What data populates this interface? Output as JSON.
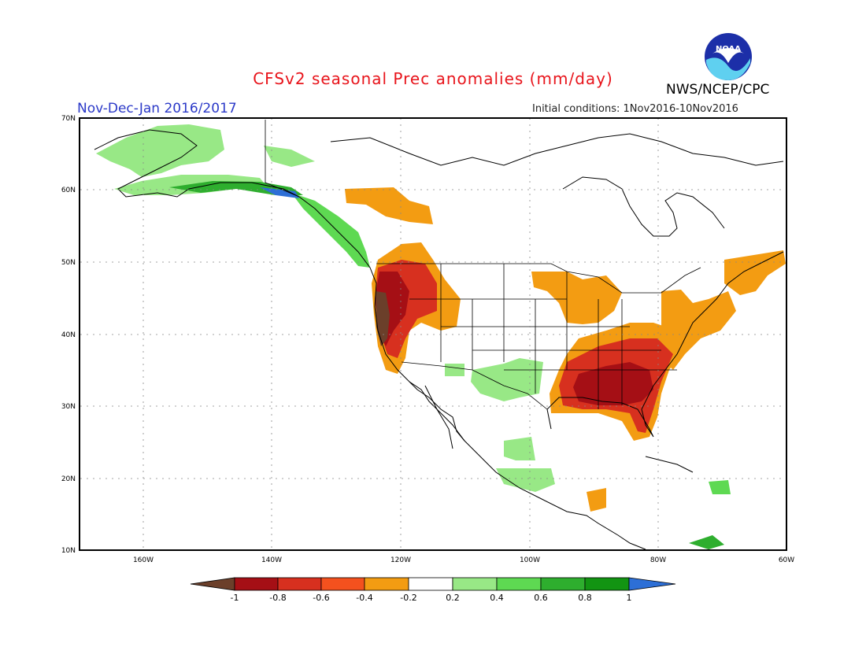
{
  "header": {
    "title": "CFSv2 seasonal Prec anomalies (mm/day)",
    "subtitle": "Nov-Dec-Jan 2016/2017",
    "initial_conditions": "Initial conditions: 1Nov2016-10Nov2016",
    "org": "NWS/NCEP/CPC",
    "logo_text": "NOAA"
  },
  "map": {
    "lat_labels": [
      "70N",
      "60N",
      "50N",
      "40N",
      "30N",
      "20N",
      "10N"
    ],
    "lon_labels": [
      "160W",
      "140W",
      "120W",
      "100W",
      "80W",
      "60W"
    ],
    "lat_range": [
      10,
      70
    ],
    "lon_range": [
      -170,
      -60
    ]
  },
  "colorbar": {
    "labels": [
      "-1",
      "-0.8",
      "-0.6",
      "-0.4",
      "-0.2",
      "0.2",
      "0.4",
      "0.6",
      "0.8",
      "1"
    ],
    "colors": [
      "#6b3f2a",
      "#a50f15",
      "#d7301f",
      "#f4511e",
      "#f39c12",
      "#ffffff",
      "#98e886",
      "#5ed952",
      "#2eae2e",
      "#129412",
      "#2d6fd6"
    ]
  }
}
